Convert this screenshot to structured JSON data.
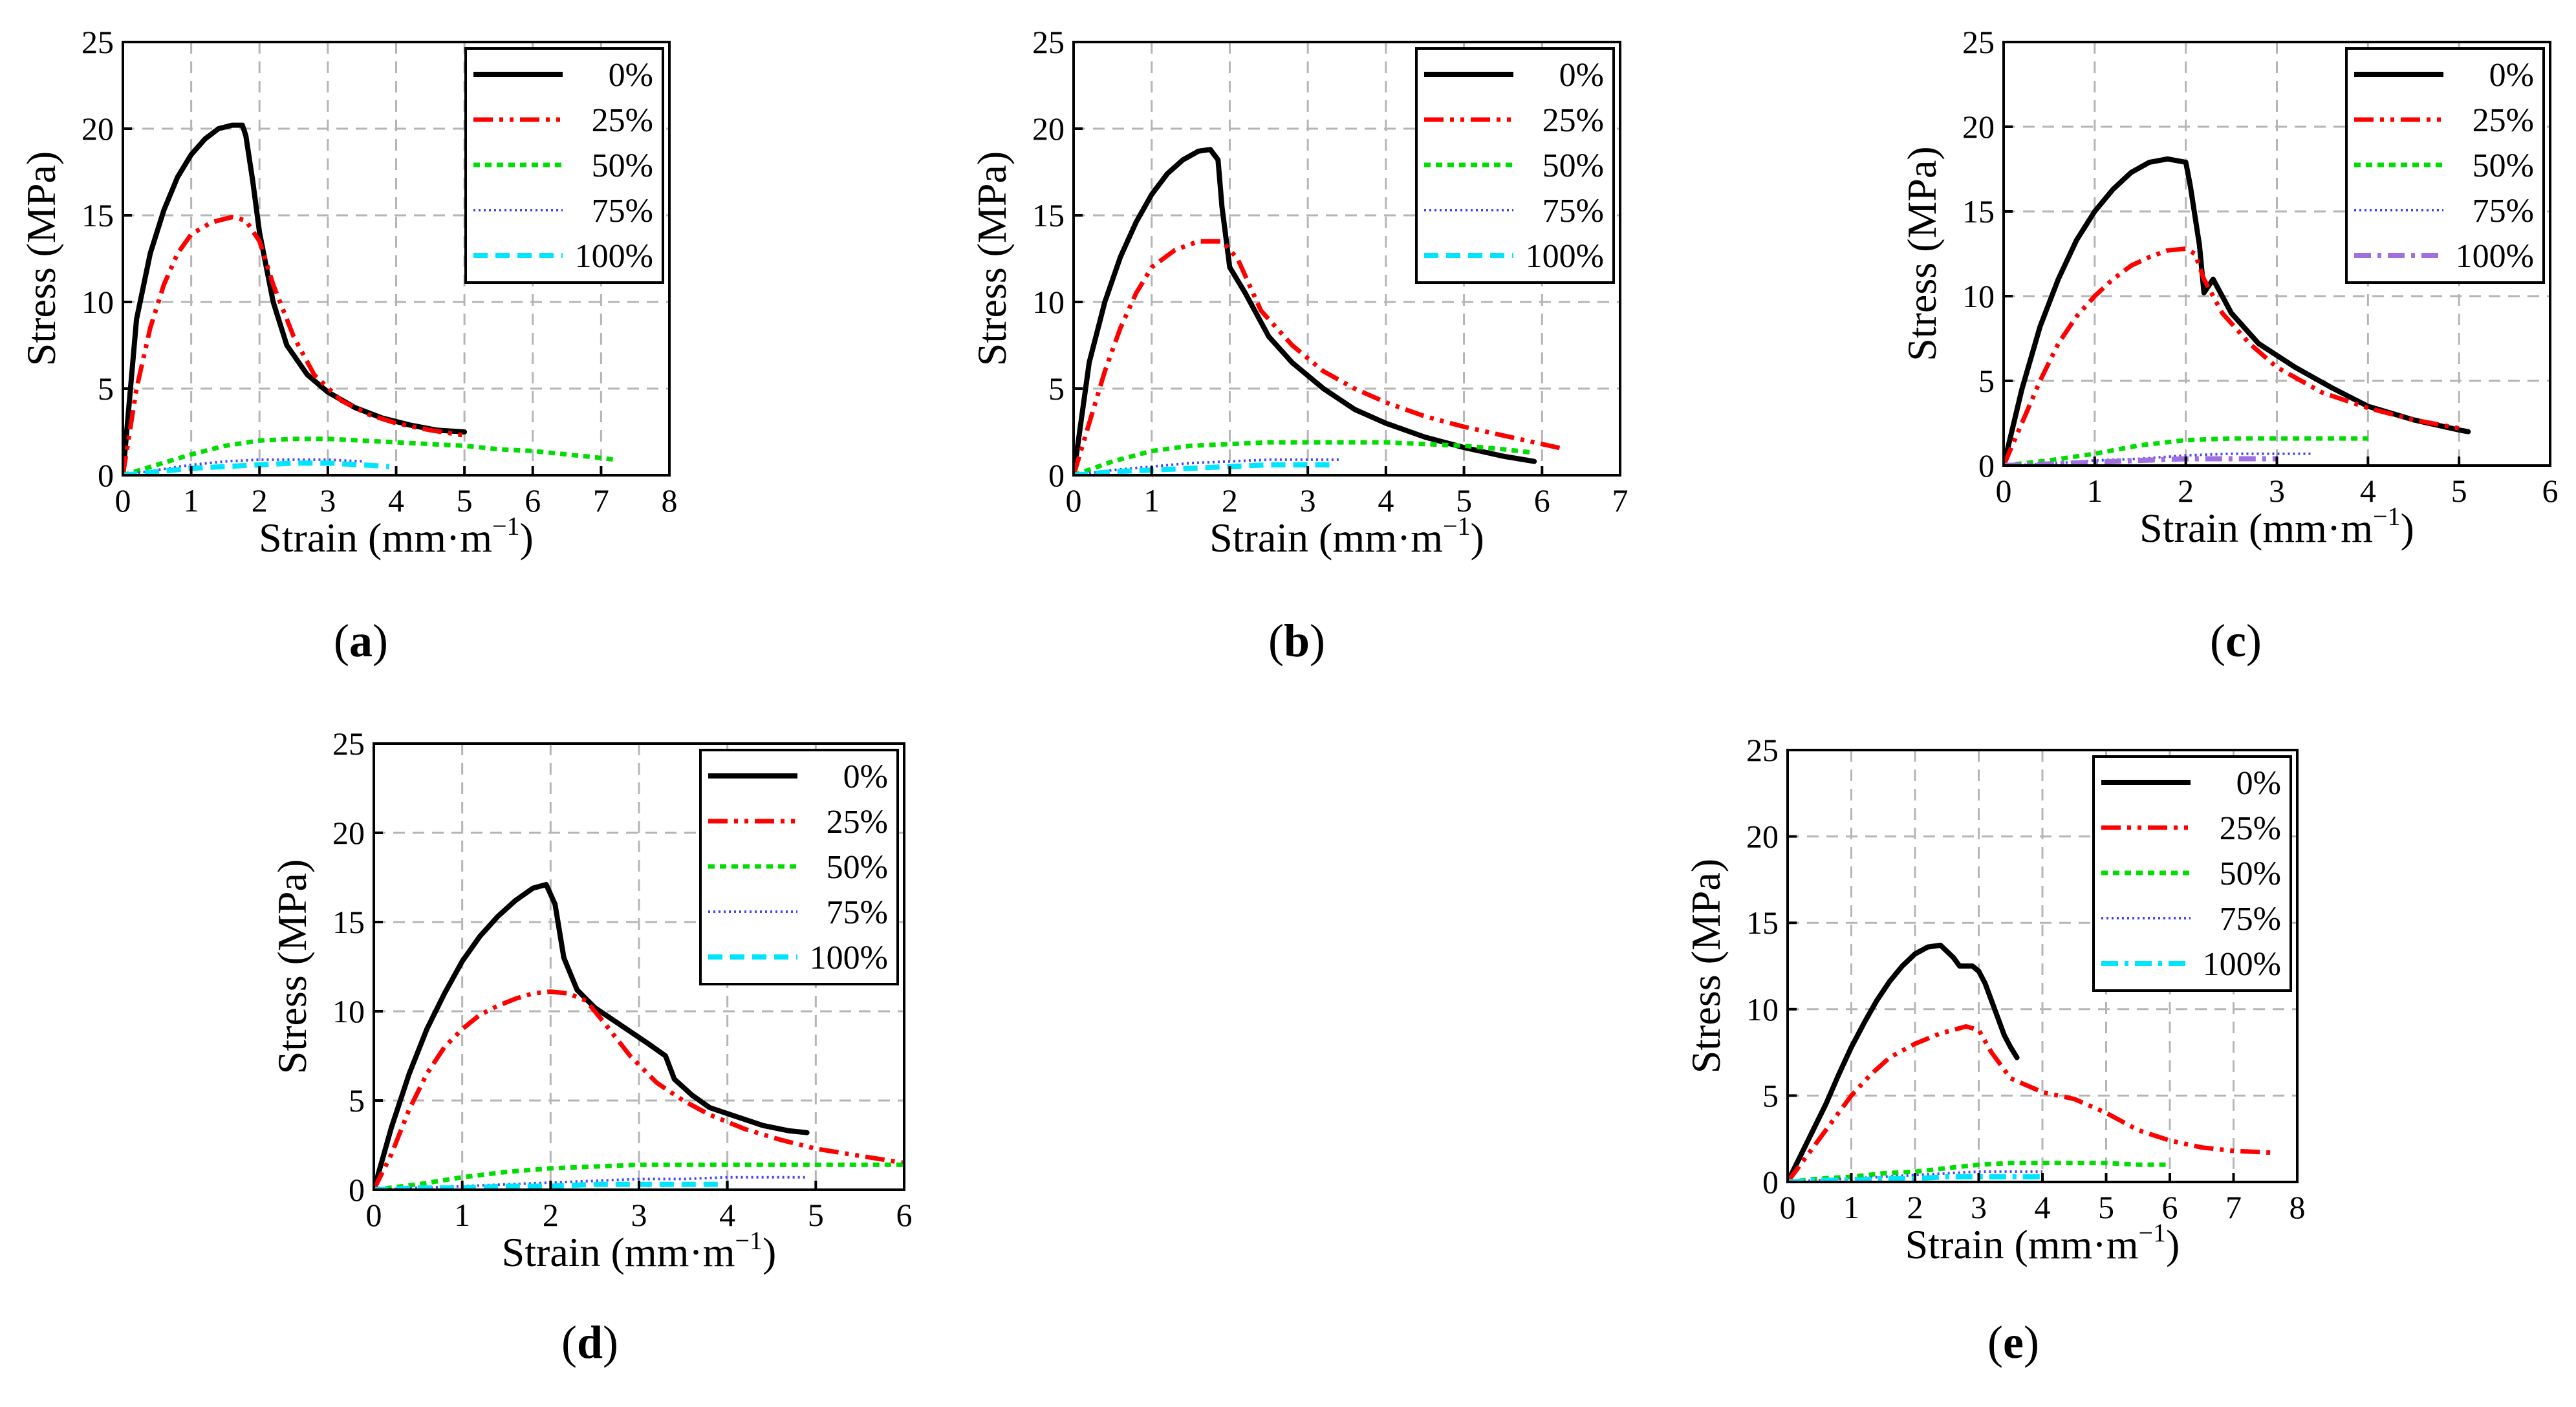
{
  "chart_data": [
    {
      "type": "line",
      "panel_label": "a",
      "xlabel": "Strain (mm·m",
      "xlabel_sup": "−1",
      "xlabel_close": ")",
      "ylabel": "Stress (MPa)",
      "xlim": [
        0,
        8
      ],
      "ylim": [
        0,
        25
      ],
      "xticks": [
        0,
        1,
        2,
        3,
        4,
        5,
        6,
        7,
        8
      ],
      "yticks": [
        0,
        5,
        10,
        15,
        20,
        25
      ],
      "grid": true,
      "legend_position": "top-right",
      "series": [
        {
          "name": "0%",
          "color": "#000000",
          "style": "solid",
          "x": [
            0,
            0.2,
            0.4,
            0.6,
            0.8,
            1.0,
            1.2,
            1.4,
            1.6,
            1.75,
            1.8,
            1.9,
            2.0,
            2.2,
            2.4,
            2.7,
            3.0,
            3.4,
            3.8,
            4.2,
            4.6,
            5.0
          ],
          "y": [
            0,
            9.0,
            12.8,
            15.3,
            17.2,
            18.5,
            19.4,
            20.0,
            20.2,
            20.2,
            19.6,
            17.0,
            14.0,
            10.0,
            7.5,
            5.8,
            4.8,
            3.9,
            3.3,
            2.9,
            2.6,
            2.5
          ]
        },
        {
          "name": "25%",
          "color": "#ff0000",
          "style": "dashdotdot",
          "x": [
            0,
            0.2,
            0.4,
            0.6,
            0.8,
            1.0,
            1.3,
            1.6,
            1.8,
            2.0,
            2.2,
            2.5,
            2.8,
            3.2,
            3.6,
            4.0,
            4.5,
            5.0
          ],
          "y": [
            0,
            5.0,
            8.5,
            11.0,
            12.8,
            13.9,
            14.6,
            14.9,
            14.7,
            13.5,
            11.0,
            8.0,
            5.8,
            4.3,
            3.5,
            3.0,
            2.6,
            2.3
          ]
        },
        {
          "name": "50%",
          "color": "#00dd00",
          "style": "dotted",
          "x": [
            0,
            0.5,
            1.0,
            1.5,
            2.0,
            2.5,
            3.0,
            3.5,
            4.0,
            4.5,
            5.0,
            5.5,
            6.0,
            6.5,
            7.0,
            7.2
          ],
          "y": [
            0,
            0.6,
            1.2,
            1.7,
            2.0,
            2.1,
            2.1,
            2.0,
            1.9,
            1.8,
            1.7,
            1.5,
            1.4,
            1.2,
            1.0,
            0.9
          ]
        },
        {
          "name": "75%",
          "color": "#4444ff",
          "style": "dense-dotted",
          "x": [
            0,
            0.5,
            1.0,
            1.5,
            2.0,
            2.5,
            3.0,
            3.5
          ],
          "y": [
            0,
            0.3,
            0.6,
            0.8,
            0.9,
            0.9,
            0.9,
            0.8
          ]
        },
        {
          "name": "100%",
          "color": "#00e5ff",
          "style": "dashed",
          "x": [
            0,
            0.5,
            1.0,
            1.5,
            2.0,
            2.5,
            3.0,
            3.5,
            3.9
          ],
          "y": [
            0,
            0.2,
            0.4,
            0.5,
            0.6,
            0.7,
            0.7,
            0.6,
            0.5
          ]
        }
      ]
    },
    {
      "type": "line",
      "panel_label": "b",
      "xlabel": "Strain (mm·m",
      "xlabel_sup": "−1",
      "xlabel_close": ")",
      "ylabel": "Stress (MPa)",
      "xlim": [
        0,
        7
      ],
      "ylim": [
        0,
        25
      ],
      "xticks": [
        0,
        1,
        2,
        3,
        4,
        5,
        6,
        7
      ],
      "yticks": [
        0,
        5,
        10,
        15,
        20,
        25
      ],
      "grid": true,
      "legend_position": "top-right",
      "series": [
        {
          "name": "0%",
          "color": "#000000",
          "style": "solid",
          "x": [
            0,
            0.2,
            0.4,
            0.6,
            0.8,
            1.0,
            1.2,
            1.4,
            1.6,
            1.75,
            1.85,
            1.9,
            2.0,
            2.2,
            2.5,
            2.8,
            3.2,
            3.6,
            4.0,
            4.5,
            5.0,
            5.5,
            5.9
          ],
          "y": [
            0,
            6.5,
            10.0,
            12.6,
            14.6,
            16.2,
            17.4,
            18.2,
            18.7,
            18.8,
            18.2,
            15.5,
            12.0,
            10.5,
            8.0,
            6.5,
            5.0,
            3.8,
            3.0,
            2.2,
            1.6,
            1.1,
            0.8
          ]
        },
        {
          "name": "25%",
          "color": "#ff0000",
          "style": "dashdotdot",
          "x": [
            0,
            0.2,
            0.4,
            0.6,
            0.8,
            1.0,
            1.3,
            1.6,
            1.9,
            2.1,
            2.4,
            2.8,
            3.2,
            3.6,
            4.0,
            4.5,
            5.0,
            5.5,
            6.0,
            6.3
          ],
          "y": [
            0,
            3.0,
            6.0,
            8.5,
            10.5,
            12.0,
            13.0,
            13.5,
            13.5,
            12.5,
            9.5,
            7.5,
            6.0,
            5.0,
            4.2,
            3.4,
            2.8,
            2.3,
            1.8,
            1.5
          ]
        },
        {
          "name": "50%",
          "color": "#00dd00",
          "style": "dotted",
          "x": [
            0,
            0.5,
            1.0,
            1.5,
            2.0,
            2.5,
            3.0,
            3.5,
            4.0,
            4.5,
            5.0,
            5.5,
            5.9
          ],
          "y": [
            0,
            0.8,
            1.4,
            1.7,
            1.8,
            1.9,
            1.9,
            1.9,
            1.9,
            1.8,
            1.7,
            1.5,
            1.3
          ]
        },
        {
          "name": "75%",
          "color": "#4444ff",
          "style": "dense-dotted",
          "x": [
            0,
            0.5,
            1.0,
            1.5,
            2.0,
            2.5,
            3.0,
            3.4
          ],
          "y": [
            0,
            0.3,
            0.5,
            0.7,
            0.8,
            0.9,
            0.9,
            0.9
          ]
        },
        {
          "name": "100%",
          "color": "#00e5ff",
          "style": "dashed",
          "x": [
            0,
            0.5,
            1.0,
            1.5,
            2.0,
            2.5,
            3.0,
            3.3
          ],
          "y": [
            0,
            0.2,
            0.3,
            0.4,
            0.5,
            0.6,
            0.6,
            0.6
          ]
        }
      ]
    },
    {
      "type": "line",
      "panel_label": "c",
      "xlabel": "Strain (mm·m",
      "xlabel_sup": "−1",
      "xlabel_close": ")",
      "ylabel": "Stress (MPa)",
      "xlim": [
        0,
        6
      ],
      "ylim": [
        0,
        25
      ],
      "xticks": [
        0,
        1,
        2,
        3,
        4,
        5,
        6
      ],
      "yticks": [
        0,
        5,
        10,
        15,
        20,
        25
      ],
      "grid": true,
      "legend_position": "top-right",
      "series": [
        {
          "name": "0%",
          "color": "#000000",
          "style": "solid",
          "x": [
            0,
            0.2,
            0.4,
            0.6,
            0.8,
            1.0,
            1.2,
            1.4,
            1.6,
            1.8,
            2.0,
            2.05,
            2.15,
            2.2,
            2.3,
            2.5,
            2.8,
            3.2,
            3.6,
            4.0,
            4.5,
            5.0,
            5.1
          ],
          "y": [
            0,
            4.5,
            8.2,
            11.0,
            13.3,
            15.0,
            16.3,
            17.3,
            17.9,
            18.1,
            17.9,
            16.5,
            13.0,
            10.2,
            11.0,
            9.0,
            7.2,
            5.8,
            4.6,
            3.5,
            2.7,
            2.1,
            2.0
          ]
        },
        {
          "name": "25%",
          "color": "#ff0000",
          "style": "dashdotdot",
          "x": [
            0,
            0.2,
            0.4,
            0.6,
            0.8,
            1.0,
            1.2,
            1.4,
            1.6,
            1.8,
            2.0,
            2.1,
            2.2,
            2.4,
            2.7,
            3.0,
            3.5,
            4.0,
            4.5,
            5.0
          ],
          "y": [
            0,
            2.5,
            5.0,
            7.2,
            8.8,
            10.0,
            11.0,
            11.8,
            12.3,
            12.7,
            12.8,
            12.5,
            11.0,
            9.0,
            7.2,
            5.8,
            4.3,
            3.4,
            2.7,
            2.2
          ]
        },
        {
          "name": "50%",
          "color": "#00dd00",
          "style": "dotted",
          "x": [
            0,
            0.5,
            1.0,
            1.5,
            2.0,
            2.5,
            3.0,
            3.5,
            4.0
          ],
          "y": [
            0,
            0.3,
            0.7,
            1.2,
            1.5,
            1.6,
            1.6,
            1.6,
            1.6
          ]
        },
        {
          "name": "75%",
          "color": "#4444ff",
          "style": "dense-dotted",
          "x": [
            0,
            0.5,
            1.0,
            1.5,
            2.0,
            2.5,
            3.0,
            3.4
          ],
          "y": [
            0,
            0.1,
            0.3,
            0.4,
            0.6,
            0.7,
            0.7,
            0.7
          ]
        },
        {
          "name": "100%",
          "color": "#a070e0",
          "style": "dashdot",
          "x": [
            0,
            0.5,
            1.0,
            1.5,
            2.0,
            2.5,
            3.0
          ],
          "y": [
            0,
            0.1,
            0.2,
            0.3,
            0.4,
            0.4,
            0.4
          ]
        }
      ]
    },
    {
      "type": "line",
      "panel_label": "d",
      "xlabel": "Strain (mm·m",
      "xlabel_sup": "−1",
      "xlabel_close": ")",
      "ylabel": "Stress (MPa)",
      "xlim": [
        0,
        6
      ],
      "ylim": [
        0,
        25
      ],
      "xticks": [
        0,
        1,
        2,
        3,
        4,
        5,
        6
      ],
      "yticks": [
        0,
        5,
        10,
        15,
        20,
        25
      ],
      "grid": true,
      "legend_position": "top-right",
      "series": [
        {
          "name": "0%",
          "color": "#000000",
          "style": "solid",
          "x": [
            0,
            0.2,
            0.4,
            0.6,
            0.8,
            1.0,
            1.2,
            1.4,
            1.6,
            1.8,
            1.95,
            2.05,
            2.15,
            2.3,
            2.5,
            2.8,
            3.1,
            3.3,
            3.4,
            3.6,
            3.8,
            4.1,
            4.4,
            4.7,
            4.9
          ],
          "y": [
            0,
            3.5,
            6.5,
            9.0,
            11.0,
            12.8,
            14.2,
            15.3,
            16.2,
            16.9,
            17.1,
            16.0,
            13.0,
            11.2,
            10.2,
            9.2,
            8.2,
            7.5,
            6.2,
            5.3,
            4.6,
            4.1,
            3.6,
            3.3,
            3.2
          ]
        },
        {
          "name": "25%",
          "color": "#ff0000",
          "style": "dashdotdot",
          "x": [
            0,
            0.2,
            0.4,
            0.6,
            0.8,
            1.0,
            1.2,
            1.4,
            1.6,
            1.8,
            2.0,
            2.2,
            2.4,
            2.6,
            2.9,
            3.2,
            3.5,
            3.8,
            4.2,
            4.6,
            5.0,
            5.5,
            6.0
          ],
          "y": [
            0,
            2.0,
            4.5,
            6.5,
            8.0,
            9.0,
            9.8,
            10.3,
            10.7,
            11.0,
            11.1,
            11.0,
            10.6,
            9.4,
            7.5,
            6.0,
            5.0,
            4.2,
            3.4,
            2.8,
            2.3,
            1.9,
            1.5
          ]
        },
        {
          "name": "50%",
          "color": "#00dd00",
          "style": "dotted",
          "x": [
            0,
            0.5,
            1.0,
            1.5,
            2.0,
            2.5,
            3.0,
            3.5,
            4.0,
            4.5,
            5.0,
            5.5,
            6.0
          ],
          "y": [
            0,
            0.3,
            0.7,
            1.0,
            1.2,
            1.3,
            1.4,
            1.4,
            1.4,
            1.4,
            1.4,
            1.4,
            1.4
          ]
        },
        {
          "name": "75%",
          "color": "#4444ff",
          "style": "dense-dotted",
          "x": [
            0,
            0.5,
            1.0,
            1.5,
            2.0,
            2.5,
            3.0,
            3.5,
            4.0,
            4.5,
            4.9
          ],
          "y": [
            0,
            0.1,
            0.2,
            0.3,
            0.4,
            0.5,
            0.6,
            0.6,
            0.7,
            0.7,
            0.7
          ]
        },
        {
          "name": "100%",
          "color": "#00e5ff",
          "style": "dashed",
          "x": [
            0,
            0.5,
            1.0,
            1.5,
            2.0,
            2.5,
            3.0,
            3.5,
            4.0
          ],
          "y": [
            0,
            0.1,
            0.1,
            0.2,
            0.2,
            0.3,
            0.3,
            0.3,
            0.3
          ]
        }
      ]
    },
    {
      "type": "line",
      "panel_label": "e",
      "xlabel": "Strain (mm·m",
      "xlabel_sup": "−1",
      "xlabel_close": ")",
      "ylabel": "Stress (MPa)",
      "xlim": [
        0,
        8
      ],
      "ylim": [
        0,
        25
      ],
      "xticks": [
        0,
        1,
        2,
        3,
        4,
        5,
        6,
        7,
        8
      ],
      "yticks": [
        0,
        5,
        10,
        15,
        20,
        25
      ],
      "grid": true,
      "legend_position": "top-right",
      "series": [
        {
          "name": "0%",
          "color": "#000000",
          "style": "solid",
          "x": [
            0,
            0.2,
            0.4,
            0.6,
            0.8,
            1.0,
            1.2,
            1.4,
            1.6,
            1.8,
            2.0,
            2.2,
            2.4,
            2.6,
            2.7,
            2.9,
            3.0,
            3.1,
            3.2,
            3.3,
            3.4,
            3.5,
            3.6
          ],
          "y": [
            0,
            1.5,
            3.0,
            4.5,
            6.2,
            7.8,
            9.2,
            10.5,
            11.6,
            12.5,
            13.2,
            13.6,
            13.7,
            13.0,
            12.5,
            12.5,
            12.2,
            11.5,
            10.5,
            9.5,
            8.5,
            7.8,
            7.2
          ]
        },
        {
          "name": "25%",
          "color": "#ff0000",
          "style": "dashdotdot",
          "x": [
            0,
            0.2,
            0.4,
            0.6,
            0.8,
            1.0,
            1.3,
            1.6,
            2.0,
            2.4,
            2.8,
            3.0,
            3.2,
            3.5,
            4.0,
            4.5,
            5.0,
            5.5,
            6.0,
            6.5,
            7.0,
            7.6
          ],
          "y": [
            0,
            1.0,
            2.0,
            3.0,
            4.0,
            5.0,
            6.2,
            7.2,
            8.0,
            8.6,
            9.0,
            8.8,
            7.5,
            6.0,
            5.2,
            4.8,
            4.0,
            3.0,
            2.4,
            2.0,
            1.8,
            1.7
          ]
        },
        {
          "name": "50%",
          "color": "#00dd00",
          "style": "dotted",
          "x": [
            0,
            0.5,
            1.0,
            1.5,
            2.0,
            2.5,
            3.0,
            3.5,
            4.0,
            4.5,
            5.0,
            5.5,
            6.0
          ],
          "y": [
            0,
            0.2,
            0.3,
            0.5,
            0.6,
            0.8,
            1.0,
            1.1,
            1.1,
            1.1,
            1.1,
            1.0,
            1.0
          ]
        },
        {
          "name": "75%",
          "color": "#4444ff",
          "style": "dense-dotted",
          "x": [
            0,
            0.5,
            1.0,
            1.5,
            2.0,
            2.5,
            3.0,
            3.5,
            4.0
          ],
          "y": [
            0,
            0.1,
            0.2,
            0.3,
            0.4,
            0.5,
            0.6,
            0.6,
            0.6
          ]
        },
        {
          "name": "100%",
          "color": "#00e5ff",
          "style": "dashdot",
          "x": [
            0,
            0.5,
            1.0,
            1.5,
            2.0,
            2.5,
            3.0,
            3.5,
            4.0
          ],
          "y": [
            0,
            0.1,
            0.1,
            0.2,
            0.2,
            0.3,
            0.3,
            0.3,
            0.3
          ]
        }
      ]
    }
  ]
}
